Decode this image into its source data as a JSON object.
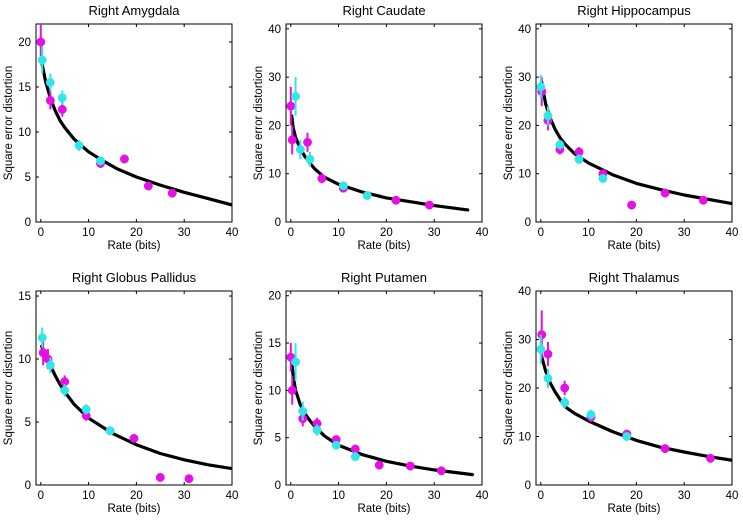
{
  "figure": {
    "xlabel": "Rate (bits)",
    "ylabel": "Square error distortion",
    "series_colors": {
      "magenta": "#e60fe6",
      "cyan": "#33e6e6",
      "curve": "#000000"
    }
  },
  "chart_data": [
    {
      "type": "scatter",
      "title": "Right Amygdala",
      "xlabel": "Rate (bits)",
      "ylabel": "Square error distortion",
      "xlim": [
        -1,
        40
      ],
      "ylim": [
        0,
        22
      ],
      "xticks": [
        0,
        10,
        20,
        30,
        40
      ],
      "yticks": [
        0,
        5,
        10,
        15,
        20
      ],
      "curve": {
        "name": "fit",
        "x": [
          0.3,
          1,
          2,
          3,
          4,
          5,
          7,
          10,
          13,
          16,
          20,
          25,
          30,
          35,
          40
        ],
        "y": [
          17.5,
          15.6,
          13.8,
          12.4,
          11.3,
          10.5,
          9.2,
          7.8,
          6.8,
          5.9,
          5.0,
          4.1,
          3.3,
          2.6,
          1.9
        ]
      },
      "series": [
        {
          "name": "magenta",
          "points": [
            {
              "x": 0,
              "y": 20,
              "err": 2
            },
            {
              "x": 2,
              "y": 13.5,
              "err": 1
            },
            {
              "x": 4.5,
              "y": 12.5,
              "err": 0.8
            },
            {
              "x": 12.5,
              "y": 6.5,
              "err": 0.5
            },
            {
              "x": 17.5,
              "y": 7,
              "err": 0.3
            },
            {
              "x": 22.5,
              "y": 4,
              "err": 0.3
            },
            {
              "x": 27.5,
              "y": 3.2,
              "err": 0.2
            }
          ]
        },
        {
          "name": "cyan",
          "points": [
            {
              "x": 0.3,
              "y": 18,
              "err": 1.5
            },
            {
              "x": 2,
              "y": 15.5,
              "err": 1
            },
            {
              "x": 4.5,
              "y": 13.8,
              "err": 0.8
            },
            {
              "x": 8,
              "y": 8.5,
              "err": 0.6
            },
            {
              "x": 12.5,
              "y": 6.8,
              "err": 0.5
            }
          ]
        }
      ]
    },
    {
      "type": "scatter",
      "title": "Right Caudate",
      "xlabel": "Rate (bits)",
      "ylabel": "Square error distortion",
      "xlim": [
        -1,
        40
      ],
      "ylim": [
        0,
        41
      ],
      "xticks": [
        0,
        10,
        20,
        30,
        40
      ],
      "yticks": [
        0,
        10,
        20,
        30,
        40
      ],
      "curve": {
        "name": "fit",
        "x": [
          0.2,
          0.5,
          1,
          2,
          3,
          4,
          5,
          7,
          10,
          15,
          20,
          25,
          30,
          37
        ],
        "y": [
          22,
          19.5,
          17.5,
          15.2,
          13.5,
          12.2,
          11,
          9.3,
          7.8,
          6.2,
          5,
          4.2,
          3.4,
          2.5
        ]
      },
      "series": [
        {
          "name": "magenta",
          "points": [
            {
              "x": 0,
              "y": 24,
              "err": 4
            },
            {
              "x": 0.3,
              "y": 17,
              "err": 3
            },
            {
              "x": 3.5,
              "y": 16.5,
              "err": 2
            },
            {
              "x": 6.5,
              "y": 9,
              "err": 1
            },
            {
              "x": 11,
              "y": 7,
              "err": 0.8
            },
            {
              "x": 22,
              "y": 4.5,
              "err": 0.5
            },
            {
              "x": 29,
              "y": 3.5,
              "err": 0.5
            }
          ]
        },
        {
          "name": "cyan",
          "points": [
            {
              "x": 1,
              "y": 26,
              "err": 4
            },
            {
              "x": 2,
              "y": 15,
              "err": 2
            },
            {
              "x": 4,
              "y": 13,
              "err": 1.5
            },
            {
              "x": 11,
              "y": 7.5,
              "err": 0.8
            },
            {
              "x": 16,
              "y": 5.5,
              "err": 0.6
            }
          ]
        }
      ]
    },
    {
      "type": "scatter",
      "title": "Right Hippocampus",
      "xlabel": "Rate (bits)",
      "ylabel": "Square error distortion",
      "xlim": [
        -1,
        40
      ],
      "ylim": [
        0,
        41
      ],
      "xticks": [
        0,
        10,
        20,
        30,
        40
      ],
      "yticks": [
        0,
        10,
        20,
        30,
        40
      ],
      "curve": {
        "name": "fit",
        "x": [
          0.2,
          1,
          2,
          3,
          4,
          5,
          7,
          10,
          15,
          20,
          25,
          30,
          35,
          40
        ],
        "y": [
          29,
          24.5,
          21.5,
          19.2,
          17.5,
          16.2,
          14.2,
          12.2,
          9.8,
          8,
          6.7,
          5.6,
          4.7,
          3.8
        ]
      },
      "series": [
        {
          "name": "magenta",
          "points": [
            {
              "x": 0.2,
              "y": 27,
              "err": 3
            },
            {
              "x": 1.5,
              "y": 21,
              "err": 2
            },
            {
              "x": 4,
              "y": 15,
              "err": 1
            },
            {
              "x": 8,
              "y": 14.5,
              "err": 1
            },
            {
              "x": 13,
              "y": 10,
              "err": 0.6
            },
            {
              "x": 19,
              "y": 3.5,
              "err": 0.3
            },
            {
              "x": 26,
              "y": 6,
              "err": 0.5
            },
            {
              "x": 34,
              "y": 4.5,
              "err": 0.4
            }
          ]
        },
        {
          "name": "cyan",
          "points": [
            {
              "x": 0,
              "y": 28,
              "err": 2.5
            },
            {
              "x": 1.5,
              "y": 22,
              "err": 2
            },
            {
              "x": 4,
              "y": 16,
              "err": 1
            },
            {
              "x": 8,
              "y": 13,
              "err": 1
            },
            {
              "x": 13,
              "y": 9,
              "err": 0.6
            }
          ]
        }
      ]
    },
    {
      "type": "scatter",
      "title": "Right Globus Pallidus",
      "xlabel": "Rate (bits)",
      "ylabel": "Square error distortion",
      "xlim": [
        -1,
        40
      ],
      "ylim": [
        0,
        15.4
      ],
      "xticks": [
        0,
        10,
        20,
        30,
        40
      ],
      "yticks": [
        0,
        5,
        10,
        15
      ],
      "curve": {
        "name": "fit",
        "x": [
          0.2,
          1,
          2,
          3,
          4,
          5,
          7,
          10,
          15,
          20,
          25,
          30,
          35,
          40
        ],
        "y": [
          11,
          10.3,
          9.5,
          8.7,
          8,
          7.4,
          6.4,
          5.3,
          4.1,
          3.2,
          2.5,
          2,
          1.6,
          1.3
        ]
      },
      "series": [
        {
          "name": "magenta",
          "points": [
            {
              "x": 0.5,
              "y": 10.5,
              "err": 1
            },
            {
              "x": 1.5,
              "y": 10,
              "err": 0.8
            },
            {
              "x": 5,
              "y": 8.2,
              "err": 0.5
            },
            {
              "x": 9.5,
              "y": 5.5,
              "err": 0.4
            },
            {
              "x": 14.5,
              "y": 4.3,
              "err": 0.3
            },
            {
              "x": 19.5,
              "y": 3.7,
              "err": 0.3
            },
            {
              "x": 25,
              "y": 0.6,
              "err": 0.2
            },
            {
              "x": 31,
              "y": 0.5,
              "err": 0.2
            }
          ]
        },
        {
          "name": "cyan",
          "points": [
            {
              "x": 0.3,
              "y": 11.7,
              "err": 0.8
            },
            {
              "x": 2,
              "y": 9.5,
              "err": 0.6
            },
            {
              "x": 5,
              "y": 7.5,
              "err": 0.5
            },
            {
              "x": 9.5,
              "y": 6,
              "err": 0.4
            },
            {
              "x": 14.5,
              "y": 4.3,
              "err": 0.3
            }
          ]
        }
      ]
    },
    {
      "type": "scatter",
      "title": "Right Putamen",
      "xlabel": "Rate (bits)",
      "ylabel": "Square error distortion",
      "xlim": [
        -1,
        40
      ],
      "ylim": [
        0,
        20.5
      ],
      "xticks": [
        0,
        10,
        20,
        30,
        40
      ],
      "yticks": [
        0,
        5,
        10,
        15,
        20
      ],
      "curve": {
        "name": "fit",
        "x": [
          0.1,
          0.5,
          1,
          2,
          3,
          4,
          5,
          7,
          10,
          15,
          20,
          25,
          30,
          38
        ],
        "y": [
          13.5,
          11.5,
          10,
          8.5,
          7.5,
          6.8,
          6.2,
          5.2,
          4.2,
          3.2,
          2.5,
          2,
          1.6,
          1.1
        ]
      },
      "series": [
        {
          "name": "magenta",
          "points": [
            {
              "x": 0,
              "y": 13.5,
              "err": 1.5
            },
            {
              "x": 0.3,
              "y": 10,
              "err": 1.5
            },
            {
              "x": 2.5,
              "y": 7,
              "err": 0.8
            },
            {
              "x": 5.5,
              "y": 6.5,
              "err": 0.6
            },
            {
              "x": 9.5,
              "y": 4.8,
              "err": 0.4
            },
            {
              "x": 13.5,
              "y": 3.8,
              "err": 0.3
            },
            {
              "x": 18.5,
              "y": 2.1,
              "err": 0.3
            },
            {
              "x": 25,
              "y": 2,
              "err": 0.2
            },
            {
              "x": 31.5,
              "y": 1.5,
              "err": 0.2
            }
          ]
        },
        {
          "name": "cyan",
          "points": [
            {
              "x": 1,
              "y": 13,
              "err": 2
            },
            {
              "x": 2.5,
              "y": 7.8,
              "err": 1
            },
            {
              "x": 5.5,
              "y": 5.8,
              "err": 0.6
            },
            {
              "x": 9.5,
              "y": 4.2,
              "err": 0.4
            },
            {
              "x": 13.5,
              "y": 3,
              "err": 0.3
            }
          ]
        }
      ]
    },
    {
      "type": "scatter",
      "title": "Right Thalamus",
      "xlabel": "Rate (bits)",
      "ylabel": "Square error distortion",
      "xlim": [
        -1,
        40
      ],
      "ylim": [
        0,
        40
      ],
      "xticks": [
        0,
        10,
        20,
        30,
        40
      ],
      "yticks": [
        0,
        10,
        20,
        30,
        40
      ],
      "curve": {
        "name": "fit",
        "x": [
          0.2,
          1,
          2,
          3,
          4,
          5,
          7,
          10,
          15,
          20,
          25,
          30,
          35,
          40
        ],
        "y": [
          26.5,
          23.5,
          21,
          19.2,
          17.7,
          16.2,
          14.8,
          13.2,
          11,
          9.2,
          7.8,
          6.8,
          5.9,
          5.1
        ]
      },
      "series": [
        {
          "name": "magenta",
          "points": [
            {
              "x": 0.2,
              "y": 31,
              "err": 5
            },
            {
              "x": 1.5,
              "y": 27,
              "err": 2.5
            },
            {
              "x": 5,
              "y": 20,
              "err": 1.5
            },
            {
              "x": 10.5,
              "y": 14,
              "err": 1
            },
            {
              "x": 18,
              "y": 10.5,
              "err": 0.8
            },
            {
              "x": 26,
              "y": 7.5,
              "err": 0.6
            },
            {
              "x": 35.5,
              "y": 5.5,
              "err": 0.5
            }
          ]
        },
        {
          "name": "cyan",
          "points": [
            {
              "x": 0,
              "y": 28,
              "err": 3
            },
            {
              "x": 1.5,
              "y": 22,
              "err": 2
            },
            {
              "x": 5,
              "y": 17,
              "err": 1.2
            },
            {
              "x": 10.5,
              "y": 14.5,
              "err": 1
            },
            {
              "x": 18,
              "y": 10,
              "err": 0.8
            }
          ]
        }
      ]
    }
  ]
}
